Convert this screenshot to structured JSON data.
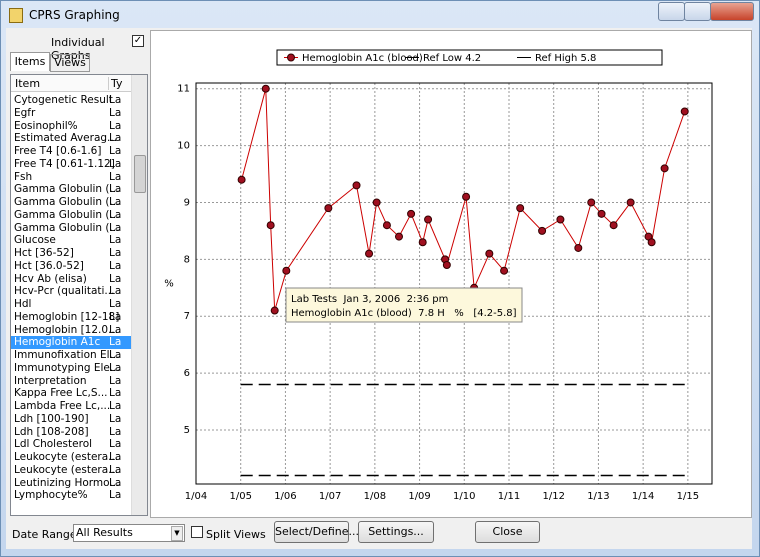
{
  "window": {
    "title": "CPRS Graphing"
  },
  "sidebar": {
    "individual_graphs": "Individual Graphs",
    "tabs": [
      "Items",
      "Views"
    ],
    "columns": [
      "Item",
      "Ty"
    ],
    "selected": 19,
    "items": [
      {
        "name": "Cytogenetic Result",
        "type": "La"
      },
      {
        "name": "Egfr",
        "type": "La"
      },
      {
        "name": "Eosinophil%",
        "type": "La"
      },
      {
        "name": "Estimated Averag...",
        "type": "La"
      },
      {
        "name": "Free T4 [0.6-1.6]",
        "type": "La"
      },
      {
        "name": "Free T4 [0.61-1.12]",
        "type": "La"
      },
      {
        "name": "Fsh",
        "type": "La"
      },
      {
        "name": "Gamma Globulin (...",
        "type": "La"
      },
      {
        "name": "Gamma Globulin (...",
        "type": "La"
      },
      {
        "name": "Gamma Globulin (...",
        "type": "La"
      },
      {
        "name": "Gamma Globulin (...",
        "type": "La"
      },
      {
        "name": "Glucose",
        "type": "La"
      },
      {
        "name": "Hct [36-52]",
        "type": "La"
      },
      {
        "name": "Hct [36.0-52]",
        "type": "La"
      },
      {
        "name": "Hcv Ab (elisa)",
        "type": "La"
      },
      {
        "name": "Hcv-Pcr (qualitati...",
        "type": "La"
      },
      {
        "name": "Hdl",
        "type": "La"
      },
      {
        "name": "Hemoglobin [12-18]",
        "type": "La"
      },
      {
        "name": "Hemoglobin [12.0...",
        "type": "La"
      },
      {
        "name": "Hemoglobin A1c",
        "type": "La"
      },
      {
        "name": "Immunofixation El...",
        "type": "La"
      },
      {
        "name": "Immunotyping Ele...",
        "type": "La"
      },
      {
        "name": "Interpretation",
        "type": "La"
      },
      {
        "name": "Kappa Free Lc,S...",
        "type": "La"
      },
      {
        "name": "Lambda Free Lc,...",
        "type": "La"
      },
      {
        "name": "Ldh [100-190]",
        "type": "La"
      },
      {
        "name": "Ldh [108-208]",
        "type": "La"
      },
      {
        "name": "Ldl Cholesterol",
        "type": "La"
      },
      {
        "name": "Leukocyte (estera...",
        "type": "La"
      },
      {
        "name": "Leukocyte (estera...",
        "type": "La"
      },
      {
        "name": "Leutinizing Hormo...",
        "type": "La"
      },
      {
        "name": "Lymphocyte%",
        "type": "La"
      }
    ]
  },
  "chart_data": {
    "type": "line",
    "ylabel": "%",
    "grid": true,
    "xlim": [
      2004,
      2015.54
    ],
    "ylim": [
      4.05,
      11.1
    ],
    "xticks": [
      {
        "value": 2004,
        "label": "1/04"
      },
      {
        "value": 2005,
        "label": "1/05"
      },
      {
        "value": 2006,
        "label": "1/06"
      },
      {
        "value": 2007,
        "label": "1/07"
      },
      {
        "value": 2008,
        "label": "1/08"
      },
      {
        "value": 2009,
        "label": "1/09"
      },
      {
        "value": 2010,
        "label": "1/10"
      },
      {
        "value": 2011,
        "label": "1/11"
      },
      {
        "value": 2012,
        "label": "1/12"
      },
      {
        "value": 2013,
        "label": "1/13"
      },
      {
        "value": 2014,
        "label": "1/14"
      },
      {
        "value": 2015,
        "label": "1/15"
      }
    ],
    "yticks": [
      5,
      6,
      7,
      8,
      9,
      10,
      11
    ],
    "series": [
      {
        "name": "Hemoglobin A1c (blood)",
        "color": "#cc0000",
        "marker": true,
        "dashed": false,
        "x": [
          2005.02,
          2005.56,
          2005.67,
          2005.76,
          2006.02,
          2006.96,
          2007.59,
          2007.87,
          2008.04,
          2008.27,
          2008.54,
          2008.81,
          2009.07,
          2009.19,
          2009.57,
          2009.61,
          2010.04,
          2010.22,
          2010.56,
          2010.89,
          2011.25,
          2011.74,
          2012.15,
          2012.55,
          2012.84,
          2013.07,
          2013.34,
          2013.72,
          2014.12,
          2014.19,
          2014.48,
          2014.93
        ],
        "values": [
          9.4,
          11.0,
          8.6,
          7.1,
          7.8,
          8.9,
          9.3,
          8.1,
          9.0,
          8.6,
          8.4,
          8.8,
          8.3,
          8.7,
          8.0,
          7.9,
          9.1,
          7.5,
          8.1,
          7.8,
          8.9,
          8.5,
          8.7,
          8.2,
          9.0,
          8.8,
          8.6,
          9.0,
          8.4,
          8.3,
          9.6,
          10.6
        ]
      },
      {
        "name": "Ref Low 4.2",
        "color": "#000000",
        "marker": false,
        "dashed": true,
        "x": [
          2005,
          2015
        ],
        "values": [
          4.2,
          4.2
        ]
      },
      {
        "name": "Ref High 5.8",
        "color": "#000000",
        "marker": false,
        "dashed": true,
        "x": [
          2005,
          2015
        ],
        "values": [
          5.8,
          5.8
        ]
      }
    ],
    "tooltip": [
      "Lab Tests  Jan 3, 2006  2:36 pm",
      "Hemoglobin A1c (blood)  7.8 H   %   [4.2-5.8]"
    ]
  },
  "footer": {
    "date_range_label": "Date Range:",
    "date_range_value": "All Results",
    "split_views": "Split Views",
    "buttons": [
      "Select/Define...",
      "Settings...",
      "Close"
    ]
  }
}
